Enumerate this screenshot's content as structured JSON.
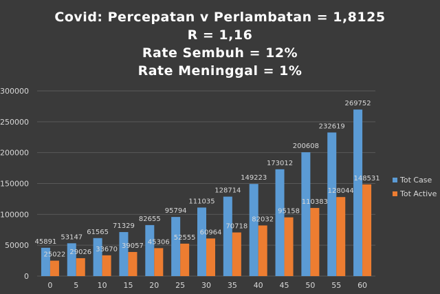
{
  "chart_data": {
    "type": "bar",
    "title_lines": [
      "Covid: Percepatan v Perlambatan = 1,8125",
      "R = 1,16",
      "Rate Sembuh = 12%",
      "Rate Meninggal = 1%"
    ],
    "categories": [
      "0",
      "5",
      "10",
      "15",
      "20",
      "25",
      "30",
      "35",
      "40",
      "45",
      "50",
      "55",
      "60"
    ],
    "series": [
      {
        "name": "Tot Case",
        "color": "#5b9bd5",
        "values": [
          45891,
          53147,
          61565,
          71329,
          82655,
          95794,
          111035,
          128714,
          149223,
          173012,
          200608,
          232619,
          269752
        ]
      },
      {
        "name": "Tot Active",
        "color": "#ed7d31",
        "values": [
          25022,
          29026,
          33670,
          39057,
          45306,
          52555,
          60964,
          70718,
          82032,
          95158,
          110383,
          128044,
          148531
        ]
      }
    ],
    "ylim": [
      0,
      300000
    ],
    "yticks": [
      0,
      50000,
      100000,
      150000,
      200000,
      250000,
      300000
    ],
    "grid": true,
    "legend_position": "right",
    "xlabel": "",
    "ylabel": ""
  },
  "colors": {
    "background": "#3a3a3a",
    "gridline": "#595959",
    "text": "#d9d9d9"
  }
}
